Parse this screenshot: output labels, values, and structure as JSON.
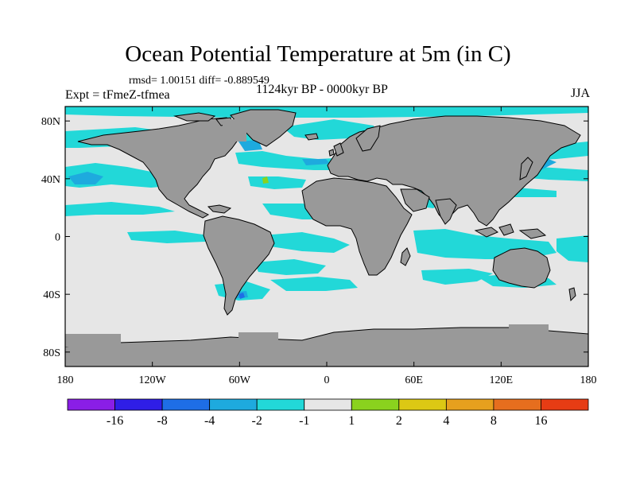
{
  "map": {
    "title": "Ocean Potential Temperature at 5m (in C)",
    "stats": "rmsd= 1.00151 diff= -0.889549",
    "expt": "Expt = tFmeZ-tfmea",
    "period": "1124kyr BP - 0000kyr BP",
    "season": "JJA",
    "lon_range": [
      -180,
      180
    ],
    "lat_range": [
      -90,
      90
    ],
    "lat_ticks": [
      {
        "value": 80,
        "label": "80N"
      },
      {
        "value": 40,
        "label": "40N"
      },
      {
        "value": 0,
        "label": "0"
      },
      {
        "value": -40,
        "label": "40S"
      },
      {
        "value": -80,
        "label": "80S"
      }
    ],
    "lon_ticks": [
      {
        "value": -180,
        "label": "180"
      },
      {
        "value": -120,
        "label": "120W"
      },
      {
        "value": -60,
        "label": "60W"
      },
      {
        "value": 0,
        "label": "0"
      },
      {
        "value": 60,
        "label": "60E"
      },
      {
        "value": 120,
        "label": "120E"
      },
      {
        "value": 180,
        "label": "180"
      }
    ]
  },
  "colorbar": {
    "colors": [
      "#8a1ee6",
      "#2f1ee6",
      "#1e6ee6",
      "#1eaade",
      "#22d8d8",
      "#e6e6e6",
      "#8ad21e",
      "#dcc814",
      "#e6a01e",
      "#e66e1e",
      "#e63c14"
    ],
    "labels": [
      "-16",
      "-8",
      "-4",
      "-2",
      "-1",
      "1",
      "2",
      "4",
      "8",
      "16"
    ]
  },
  "colors": {
    "land": "#999999",
    "ocean_neutral": "#e6e6e6",
    "cool_anomaly": "#22d8d8",
    "cooler_anomaly": "#1eaade",
    "coldest_anomaly": "#1e6ee6",
    "warm_anomaly": "#8ad21e"
  }
}
